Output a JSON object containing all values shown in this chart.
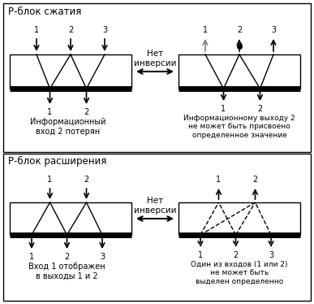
{
  "title_top": "Р-блок сжатия",
  "title_bottom": "Р-блок расширения",
  "no_inversion": "Нет\nинверсии",
  "caption_top_left": "Информационный\nвход 2 потерян",
  "caption_top_right": "Информационному выходу 2\nне может быть присвоено\nопределенное значение",
  "caption_bottom_left": "Вход 1 отображен\nв выходы 1 и 2",
  "caption_bottom_right": "Один из входов (1 или 2)\nне может быть\nвыделен определенно"
}
